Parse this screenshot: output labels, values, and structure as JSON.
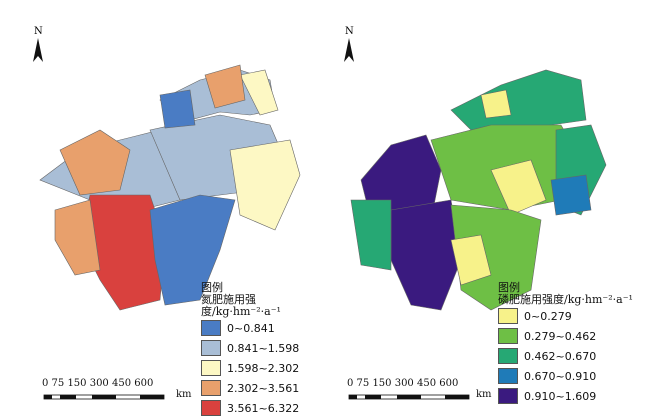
{
  "north_label": "N",
  "maps": [
    {
      "legend": {
        "heading": "图例",
        "title": "氮肥施用强度/kg·hm⁻²·a⁻¹",
        "classes": [
          {
            "label": "0~0.841",
            "color": "#4a7cc4"
          },
          {
            "label": "0.841~1.598",
            "color": "#a9bed6"
          },
          {
            "label": "1.598~2.302",
            "color": "#fdf8c4"
          },
          {
            "label": "2.302~3.561",
            "color": "#e8a06c"
          },
          {
            "label": "3.561~6.322",
            "color": "#d9413e"
          }
        ]
      },
      "scale": {
        "ticks": "0 75 150 300 450 600",
        "unit": "km"
      }
    },
    {
      "legend": {
        "heading": "图例",
        "title": "磷肥施用强度/kg·hm⁻²·a⁻¹",
        "classes": [
          {
            "label": "0~0.279",
            "color": "#f7f28a"
          },
          {
            "label": "0.279~0.462",
            "color": "#6ebf45"
          },
          {
            "label": "0.462~0.670",
            "color": "#26a874"
          },
          {
            "label": "0.670~0.910",
            "color": "#1f7bb8"
          },
          {
            "label": "0.910~1.609",
            "color": "#3a1a7f"
          }
        ]
      },
      "scale": {
        "ticks": "0 75 150 300 450 600",
        "unit": "km"
      }
    }
  ]
}
